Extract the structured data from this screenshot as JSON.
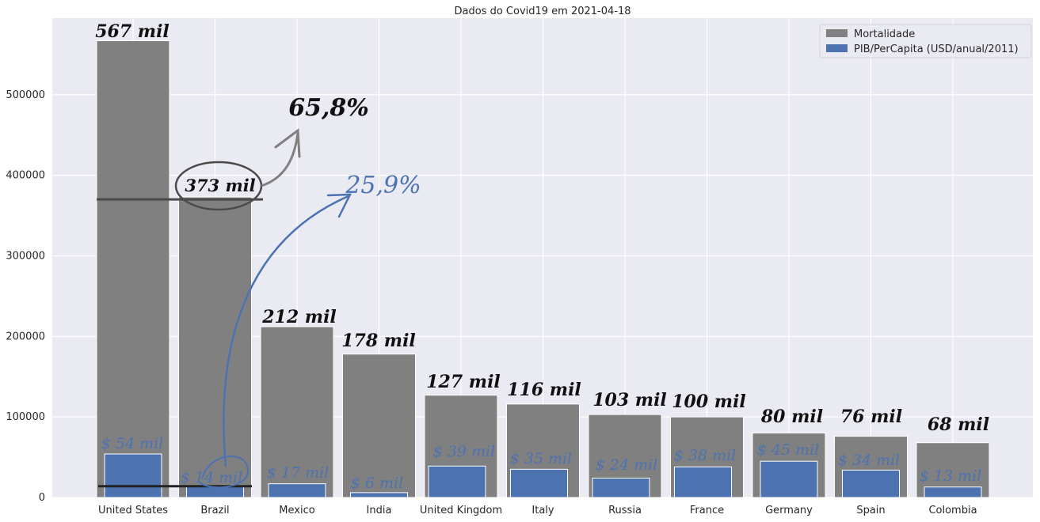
{
  "chart_data": {
    "type": "bar",
    "title": "Dados do Covid19 em 2021-04-18",
    "categories": [
      "United States",
      "Brazil",
      "Mexico",
      "India",
      "United Kingdom",
      "Italy",
      "Russia",
      "France",
      "Germany",
      "Spain",
      "Colombia"
    ],
    "series": [
      {
        "name": "Mortalidade",
        "color": "#808080",
        "values": [
          567000,
          373000,
          212000,
          178000,
          127000,
          116000,
          103000,
          100000,
          80000,
          76000,
          68000
        ]
      },
      {
        "name": "PIB/PerCapita (USD/anual/2011)",
        "color": "#4c72b0",
        "values": [
          54000,
          14000,
          17000,
          6000,
          39000,
          35000,
          24000,
          38000,
          45000,
          34000,
          13000
        ]
      }
    ],
    "yticks": [
      "0",
      "100000",
      "200000",
      "300000",
      "400000",
      "500000"
    ],
    "ylim": [
      0,
      595000
    ],
    "grid": true,
    "legend": "top-right",
    "annotations": {
      "mortality_labels": [
        "567 mil",
        "373 mil",
        "212 mil",
        "178 mil",
        "127 mil",
        "116 mil",
        "103 mil",
        "100 mil",
        "80 mil",
        "76 mil",
        "68 mil"
      ],
      "gdp_labels": [
        "$ 54 mil",
        "$ 14 mil",
        "$ 17 mil",
        "$ 6 mil",
        "$ 39 mil",
        "$ 35 mil",
        "$ 24 mil",
        "$ 38 mil",
        "$ 45 mil",
        "$ 34 mil",
        "$ 13 mil"
      ],
      "mortality_ratio": "65,8%",
      "gdp_ratio": "25,9%"
    }
  }
}
